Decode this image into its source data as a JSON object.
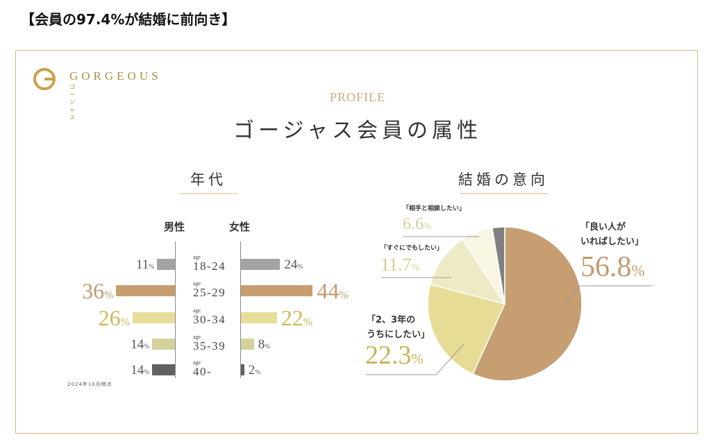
{
  "headline": "【会員の97.4%が結婚に前向き】",
  "logo": {
    "name": "GORGEOUS",
    "sub": "ゴージャス"
  },
  "profile_label": "PROFILE",
  "main_title": "ゴージャス会員の属性",
  "as_of": "2024年10月時点",
  "chart_data": [
    {
      "type": "bar",
      "orientation": "horizontal-butterfly",
      "title": "年代",
      "age_prefix": "age",
      "categories": [
        "18-24",
        "25-29",
        "30-34",
        "35-39",
        "40-"
      ],
      "unit": "%",
      "series": [
        {
          "name": "男性",
          "values": [
            11,
            36,
            26,
            14,
            14
          ]
        },
        {
          "name": "女性",
          "values": [
            24,
            44,
            22,
            8,
            2
          ]
        }
      ],
      "bar_colors": [
        "#a3a3a3",
        "#c69e72",
        "#e6dd99",
        "#d4d19c",
        "#616161"
      ],
      "label_colors": [
        "#555555",
        "#c39a6e",
        "#cdb85a",
        "#555555",
        "#555555"
      ]
    },
    {
      "type": "pie",
      "title": "結婚の意向",
      "unit": "%",
      "slices": [
        {
          "label": "「良い人がいればしたい」",
          "label_lines": [
            "「良い人が",
            "いればしたい」"
          ],
          "value": 56.8,
          "color": "#c69e72",
          "text_color": "#c39a6e"
        },
        {
          "label": "「2、3年のうちにしたい」",
          "label_lines": [
            "「2、3年の",
            "うちにしたい」"
          ],
          "value": 22.3,
          "color": "#e6dc96",
          "text_color": "#c9b455"
        },
        {
          "label": "「すぐにでもしたい」",
          "label_lines": [
            "「すぐにでもしたい」"
          ],
          "value": 11.7,
          "color": "#eeeac6",
          "text_color": "#d8c98e"
        },
        {
          "label": "「相手と相談したい」",
          "label_lines": [
            "「相手と相談したい」"
          ],
          "value": 6.6,
          "color": "#f8f6e2",
          "text_color": "#d6ce9f"
        },
        {
          "label": "",
          "label_lines": [],
          "value": 2.6,
          "color": "#7f7f7f",
          "text_color": "#7f7f7f"
        }
      ]
    }
  ]
}
